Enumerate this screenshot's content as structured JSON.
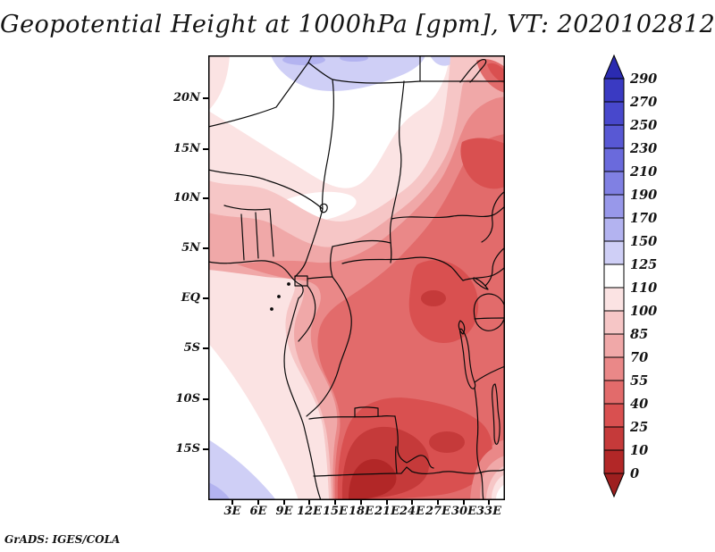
{
  "title": "Geopotential Height at 1000hPa [gpm], VT: 2020102812",
  "credit": "GrADS: IGES/COLA",
  "chart_data": {
    "type": "heatmap",
    "title": "Geopotential Height at 1000hPa [gpm], VT: 2020102812",
    "variable": "Geopotential Height",
    "level": "1000hPa",
    "units": "gpm",
    "valid_time": "2020102812",
    "lat_ticks": [
      "20N",
      "15N",
      "10N",
      "5N",
      "EQ",
      "5S",
      "10S",
      "15S"
    ],
    "lon_ticks": [
      "3E",
      "6E",
      "9E",
      "12E",
      "15E",
      "18E",
      "21E",
      "24E",
      "27E",
      "30E",
      "33E"
    ],
    "contour_levels": [
      0,
      10,
      25,
      40,
      55,
      70,
      85,
      100,
      110,
      125,
      150,
      170,
      190,
      210,
      230,
      250,
      270,
      290
    ],
    "level_colors": [
      "#9E1F1F",
      "#B22727",
      "#C53A3A",
      "#D95050",
      "#E26B6B",
      "#EA8888",
      "#F0A8A8",
      "#F6C6C6",
      "#FBE3E3",
      "#FFFFFF",
      "#CFCFF6",
      "#B3B3F0",
      "#9898EA",
      "#8080E3",
      "#6A6ADC",
      "#5858D4",
      "#4848CC",
      "#3A3AC2",
      "#2B2BB0"
    ],
    "legend_position": "right",
    "grid": false,
    "field_summary": "Lowest heights (0-55 gpm, dark red) over southern Angola/Namibia, Zambia and eastern DR Congo; moderate reds across central Africa and Sudan; high values (110-170 gpm, white to light blue-violet) along the northern Sahara edge near 22N and over the South Atlantic in the southwest corner.",
    "attribution": "GrADS: IGES/COLA"
  }
}
